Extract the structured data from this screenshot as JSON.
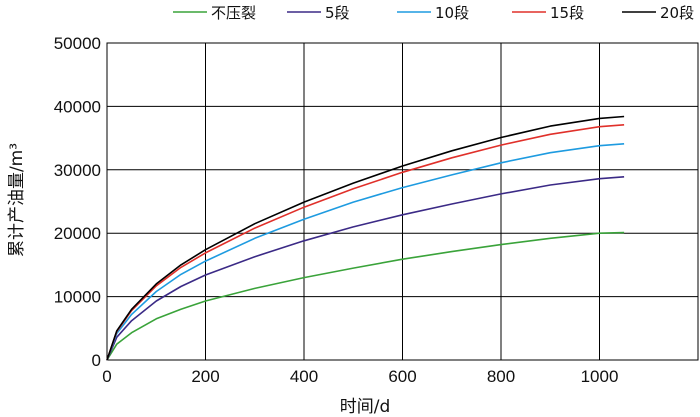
{
  "chart_data": {
    "type": "line",
    "xlabel": "时间/d",
    "ylabel": "累计产油量/m³",
    "xlim": [
      0,
      1200
    ],
    "ylim": [
      0,
      50000
    ],
    "x_ticks": [
      "0",
      "200",
      "400",
      "600",
      "800",
      "1000"
    ],
    "y_ticks": [
      "0",
      "10000",
      "20000",
      "30000",
      "40000",
      "50000"
    ],
    "grid": true,
    "legend_position": "top",
    "x": [
      0,
      20,
      50,
      100,
      150,
      200,
      300,
      400,
      500,
      600,
      700,
      800,
      900,
      1000,
      1050
    ],
    "series": [
      {
        "name": "不压裂",
        "color": "#3aa33a",
        "values": [
          0,
          2500,
          4300,
          6500,
          8000,
          9300,
          11300,
          13000,
          14500,
          15900,
          17100,
          18200,
          19200,
          20000,
          20100
        ]
      },
      {
        "name": "5段",
        "color": "#3b2a86",
        "values": [
          0,
          3600,
          6200,
          9300,
          11600,
          13400,
          16300,
          18800,
          21000,
          22900,
          24600,
          26200,
          27600,
          28600,
          28900
        ]
      },
      {
        "name": "10段",
        "color": "#1e9be0",
        "values": [
          0,
          4200,
          7200,
          10800,
          13500,
          15600,
          19200,
          22200,
          24900,
          27200,
          29200,
          31100,
          32700,
          33800,
          34100
        ]
      },
      {
        "name": "15段",
        "color": "#e0302a",
        "values": [
          0,
          4500,
          7800,
          11700,
          14600,
          16900,
          20800,
          24100,
          27000,
          29600,
          31900,
          33900,
          35600,
          36800,
          37100
        ]
      },
      {
        "name": "20段",
        "color": "#000000",
        "values": [
          0,
          4600,
          8000,
          12000,
          15000,
          17400,
          21500,
          24900,
          27900,
          30600,
          33000,
          35100,
          36900,
          38100,
          38400
        ]
      }
    ]
  }
}
